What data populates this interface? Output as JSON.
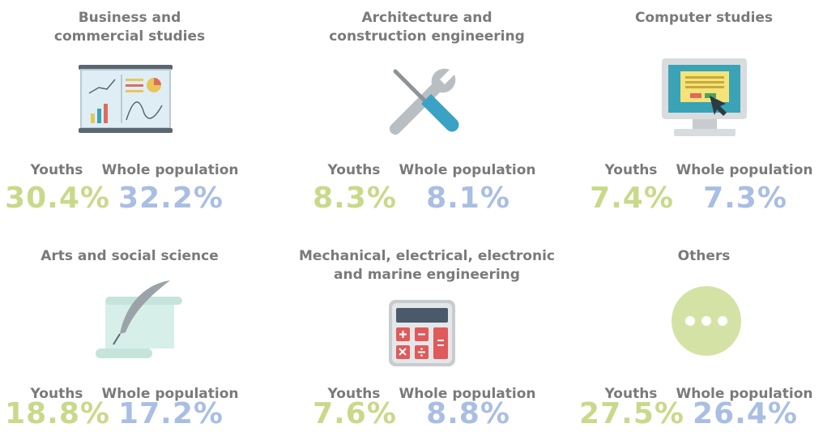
{
  "items": [
    {
      "title": [
        "Business and",
        "commercial studies"
      ],
      "youths_label": "Youths",
      "population_label": "Whole population",
      "youths": "30.4%",
      "population": "32.2%"
    },
    {
      "title": [
        "Architecture and",
        "construction engineering"
      ],
      "youths_label": "Youths",
      "population_label": "Whole population",
      "youths": "8.3%",
      "population": "8.1%"
    },
    {
      "title": [
        "Computer studies"
      ],
      "youths_label": "Youths",
      "population_label": "Whole population",
      "youths": "7.4%",
      "population": "7.3%"
    },
    {
      "title": [
        "Arts and social science"
      ],
      "youths_label": "Youths",
      "population_label": "Whole population",
      "youths": "18.8%",
      "population": "17.2%"
    },
    {
      "title": [
        "Mechanical, electrical, electronic",
        "and marine engineering"
      ],
      "youths_label": "Youths",
      "population_label": "Whole population",
      "youths": "7.6%",
      "population": "8.8%"
    },
    {
      "title": [
        "Others"
      ],
      "youths_label": "Youths",
      "population_label": "Whole population",
      "youths": "27.5%",
      "population": "26.4%"
    }
  ]
}
